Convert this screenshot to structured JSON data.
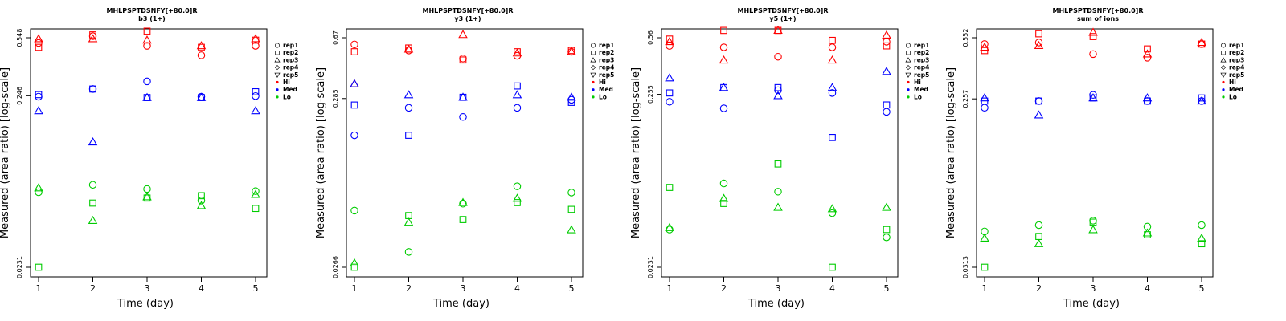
{
  "figure": {
    "legend": {
      "shapes": [
        {
          "label": "rep1",
          "shape": "circle"
        },
        {
          "label": "rep2",
          "shape": "square"
        },
        {
          "label": "rep3",
          "shape": "triangle-up"
        },
        {
          "label": "rep4",
          "shape": "diamond"
        },
        {
          "label": "rep5",
          "shape": "triangle-down"
        }
      ],
      "colors": [
        {
          "label": "Hi",
          "color": "#ff0000"
        },
        {
          "label": "Med",
          "color": "#0000ff"
        },
        {
          "label": "Lo",
          "color": "#00cc00"
        }
      ]
    }
  },
  "chart_data": [
    {
      "type": "scatter",
      "title": "MHLPSPTDSNFY[+80.0]R",
      "subtitle": "b3 (1+)",
      "xlabel": "Time (day)",
      "ylabel": "Measured (area ratio) [log-scale]",
      "y_scale": "log",
      "x_ticks": [
        1,
        2,
        3,
        4,
        5
      ],
      "y_ticks": [
        "0.0231",
        "0.246",
        "0.548"
      ],
      "ylim": [
        0.0231,
        0.548
      ],
      "legend_position": "right",
      "grid": false,
      "points": {
        "Hi": {
          "rep1": [
            0.51,
            0.56,
            0.49,
            0.43,
            0.49
          ],
          "rep2": [
            0.48,
            0.57,
            0.6,
            0.48,
            0.53
          ],
          "rep3": [
            0.54,
            0.54,
            0.53,
            0.49,
            0.54
          ]
        },
        "Med": {
          "rep1": [
            0.243,
            0.27,
            0.3,
            0.243,
            0.245
          ],
          "rep2": [
            0.25,
            0.27,
            0.24,
            0.24,
            0.26
          ],
          "rep3": [
            0.2,
            0.13,
            0.24,
            0.24,
            0.2
          ]
        },
        "Lo": {
          "rep1": [
            0.065,
            0.072,
            0.068,
            0.058,
            0.066
          ],
          "rep2": [
            0.0231,
            0.056,
            0.06,
            0.062,
            0.052
          ],
          "rep3": [
            0.069,
            0.044,
            0.061,
            0.054,
            0.063
          ]
        }
      }
    },
    {
      "type": "scatter",
      "title": "MHLPSPTDSNFY[+80.0]R",
      "subtitle": "y3 (1+)",
      "xlabel": "Time (day)",
      "ylabel": "Measured (area ratio) [log-scale]",
      "y_scale": "log",
      "x_ticks": [
        1,
        2,
        3,
        4,
        5
      ],
      "y_ticks": [
        "0.0266",
        "0.285",
        "0.67"
      ],
      "ylim": [
        0.0266,
        0.67
      ],
      "legend_position": "right",
      "grid": false,
      "points": {
        "Hi": {
          "rep1": [
            0.61,
            0.56,
            0.5,
            0.52,
            0.55
          ],
          "rep2": [
            0.55,
            0.58,
            0.49,
            0.55,
            0.56
          ],
          "rep3": [
            0.35,
            0.57,
            0.7,
            0.54,
            0.55
          ]
        },
        "Med": {
          "rep1": [
            0.17,
            0.25,
            0.22,
            0.25,
            0.28
          ],
          "rep2": [
            0.26,
            0.17,
            0.29,
            0.34,
            0.27
          ],
          "rep3": [
            0.35,
            0.3,
            0.29,
            0.3,
            0.29
          ]
        },
        "Lo": {
          "rep1": [
            0.059,
            0.033,
            0.065,
            0.083,
            0.076
          ],
          "rep2": [
            0.0266,
            0.055,
            0.052,
            0.066,
            0.06
          ],
          "rep3": [
            0.0282,
            0.05,
            0.066,
            0.07,
            0.045
          ]
        }
      }
    },
    {
      "type": "scatter",
      "title": "MHLPSPTDSNFY[+80.0]R",
      "subtitle": "y5 (1+)",
      "xlabel": "Time (day)",
      "ylabel": "Measured (area ratio) [log-scale]",
      "y_scale": "log",
      "x_ticks": [
        1,
        2,
        3,
        4,
        5
      ],
      "y_ticks": [
        "0.0231",
        "0.255",
        "0.56"
      ],
      "ylim": [
        0.0231,
        0.56
      ],
      "legend_position": "right",
      "grid": false,
      "points": {
        "Hi": {
          "rep1": [
            0.5,
            0.49,
            0.43,
            0.49,
            0.53
          ],
          "rep2": [
            0.55,
            0.62,
            0.62,
            0.54,
            0.5
          ],
          "rep3": [
            0.53,
            0.41,
            0.62,
            0.41,
            0.58
          ]
        },
        "Med": {
          "rep1": [
            0.23,
            0.21,
            0.27,
            0.26,
            0.2
          ],
          "rep2": [
            0.26,
            0.28,
            0.28,
            0.14,
            0.22
          ],
          "rep3": [
            0.32,
            0.28,
            0.25,
            0.28,
            0.35
          ]
        },
        "Lo": {
          "rep1": [
            0.039,
            0.074,
            0.066,
            0.049,
            0.035
          ],
          "rep2": [
            0.07,
            0.056,
            0.097,
            0.0231,
            0.039
          ],
          "rep3": [
            0.04,
            0.06,
            0.053,
            0.052,
            0.053
          ]
        }
      }
    },
    {
      "type": "scatter",
      "title": "MHLPSPTDSNFY[+80.0]R",
      "subtitle": "sum of ions",
      "xlabel": "Time (day)",
      "ylabel": "Measured (area ratio) [log-scale]",
      "y_scale": "log",
      "x_ticks": [
        1,
        2,
        3,
        4,
        5
      ],
      "y_ticks": [
        "0.0313",
        "0.257",
        "0.552"
      ],
      "ylim": [
        0.0313,
        0.552
      ],
      "legend_position": "right",
      "grid": false,
      "points": {
        "Hi": {
          "rep1": [
            0.51,
            0.52,
            0.45,
            0.43,
            0.51
          ],
          "rep2": [
            0.47,
            0.58,
            0.56,
            0.48,
            0.51
          ],
          "rep3": [
            0.49,
            0.5,
            0.59,
            0.45,
            0.52
          ]
        },
        "Med": {
          "rep1": [
            0.23,
            0.25,
            0.27,
            0.25,
            0.25
          ],
          "rep2": [
            0.25,
            0.25,
            0.26,
            0.25,
            0.26
          ],
          "rep3": [
            0.26,
            0.21,
            0.26,
            0.26,
            0.25
          ]
        },
        "Lo": {
          "rep1": [
            0.049,
            0.053,
            0.056,
            0.052,
            0.053
          ],
          "rep2": [
            0.0313,
            0.046,
            0.055,
            0.047,
            0.042
          ],
          "rep3": [
            0.045,
            0.042,
            0.05,
            0.048,
            0.045
          ]
        }
      }
    }
  ]
}
